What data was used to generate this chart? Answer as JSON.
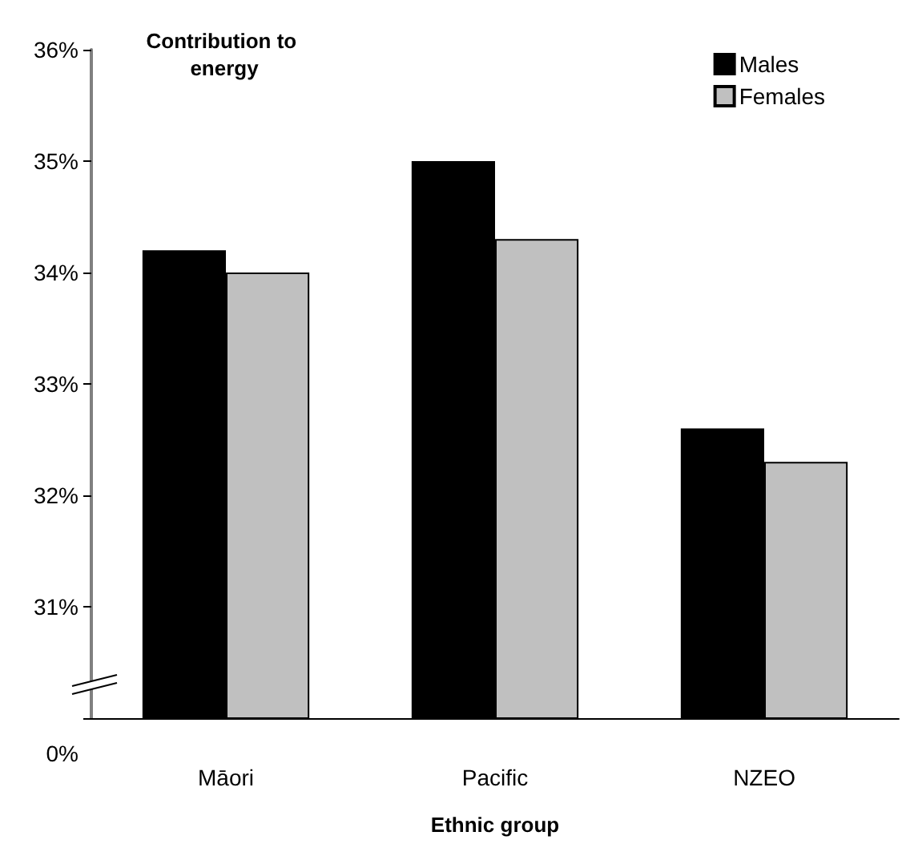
{
  "chart_data": {
    "type": "bar",
    "ylabel": "Contribution to energy",
    "xlabel": "Ethnic group",
    "categories": [
      "Māori",
      "Pacific",
      "NZEO"
    ],
    "series": [
      {
        "name": "Males",
        "color": "#000000",
        "values": [
          34.2,
          35.0,
          32.6
        ]
      },
      {
        "name": "Females",
        "color": "#c0c0c0",
        "values": [
          34.0,
          34.3,
          32.3
        ]
      }
    ],
    "ylim": [
      30,
      36
    ],
    "annotations": [
      "0%"
    ],
    "yticks": [
      {
        "value": 30,
        "label": null
      },
      {
        "value": 31,
        "label": "31%"
      },
      {
        "value": 32,
        "label": "32%"
      },
      {
        "value": 33,
        "label": "33%"
      },
      {
        "value": 34,
        "label": "34%"
      },
      {
        "value": 35,
        "label": "35%"
      },
      {
        "value": 36,
        "label": "36%"
      }
    ],
    "grid": false,
    "legend": "top right"
  }
}
